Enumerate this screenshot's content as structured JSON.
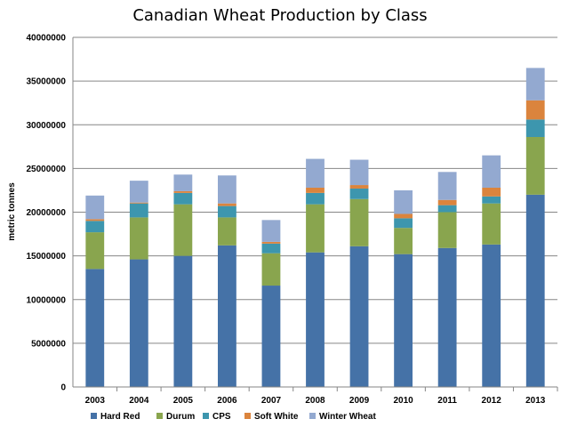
{
  "chart_data": {
    "type": "bar",
    "stacked": true,
    "title": "Canadian Wheat Production by  Class",
    "xlabel": "",
    "ylabel": "metric tonnes",
    "ylim": [
      0,
      40000000
    ],
    "yticks": [
      0,
      5000000,
      10000000,
      15000000,
      20000000,
      25000000,
      30000000,
      35000000,
      40000000
    ],
    "ytick_labels": [
      "0",
      "5000000",
      "10000000",
      "15000000",
      "20000000",
      "25000000",
      "30000000",
      "35000000",
      "40000000"
    ],
    "grid": true,
    "legend_position": "bottom",
    "categories": [
      "2003",
      "2004",
      "2005",
      "2006",
      "2007",
      "2008",
      "2009",
      "2010",
      "2011",
      "2012",
      "2013"
    ],
    "series": [
      {
        "name": "Hard Red",
        "color": "#4572a7",
        "values": [
          13500000,
          14600000,
          15000000,
          16200000,
          11600000,
          15400000,
          16100000,
          15200000,
          15900000,
          16300000,
          22000000
        ]
      },
      {
        "name": "Durum",
        "color": "#89a54e",
        "values": [
          4200000,
          4800000,
          5900000,
          3200000,
          3700000,
          5500000,
          5400000,
          3000000,
          4100000,
          4700000,
          6600000
        ]
      },
      {
        "name": "CPS",
        "color": "#3d96ae",
        "values": [
          1300000,
          1600000,
          1300000,
          1300000,
          1100000,
          1300000,
          1200000,
          1100000,
          800000,
          800000,
          2000000
        ]
      },
      {
        "name": "Soft White",
        "color": "#db843d",
        "values": [
          200000,
          100000,
          200000,
          300000,
          200000,
          600000,
          400000,
          500000,
          600000,
          1000000,
          2200000
        ]
      },
      {
        "name": "Winter Wheat",
        "color": "#93a9d0",
        "values": [
          2700000,
          2500000,
          1900000,
          3200000,
          2500000,
          3300000,
          2900000,
          2700000,
          3200000,
          3700000,
          3700000
        ]
      }
    ]
  }
}
